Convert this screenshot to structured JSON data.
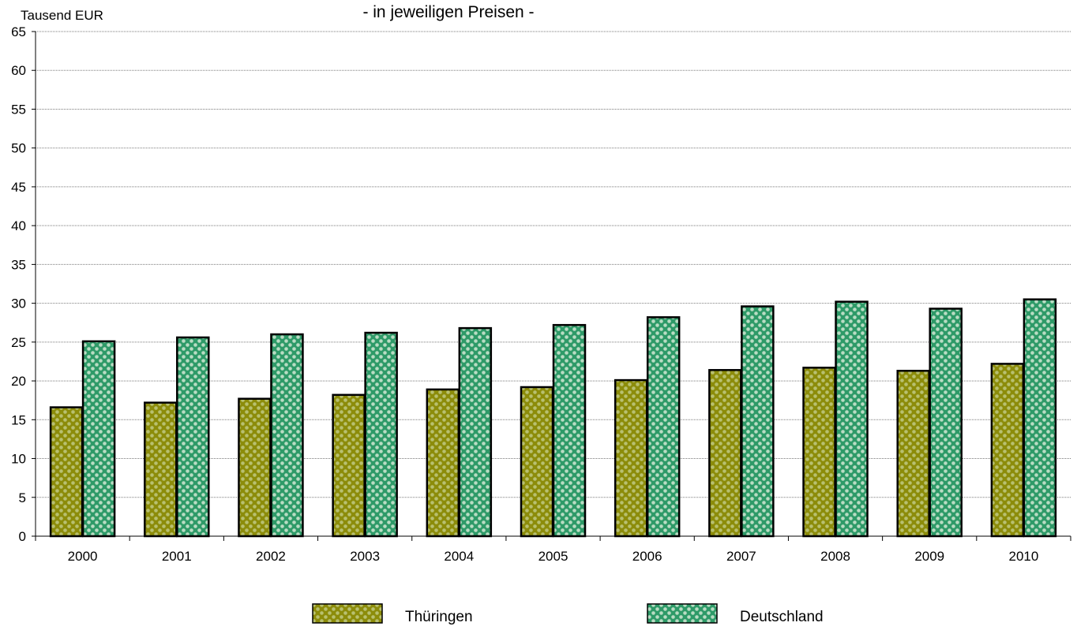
{
  "chart_data": {
    "type": "bar",
    "subtitle": "- in jeweiligen Preisen  -",
    "ylabel": "Tausend EUR",
    "ylim": [
      0,
      65
    ],
    "yticks": [
      0,
      5,
      10,
      15,
      20,
      25,
      30,
      35,
      40,
      45,
      50,
      55,
      60,
      65
    ],
    "categories": [
      "2000",
      "2001",
      "2002",
      "2003",
      "2004",
      "2005",
      "2006",
      "2007",
      "2008",
      "2009",
      "2010"
    ],
    "grid": true,
    "legend_position": "bottom",
    "series": [
      {
        "name": "Thüringen",
        "color": "#8c8c0a",
        "pattern_color": "#b8c070",
        "values": [
          16.6,
          17.2,
          17.7,
          18.2,
          18.9,
          19.2,
          20.1,
          21.4,
          21.7,
          21.3,
          22.2
        ]
      },
      {
        "name": "Deutschland",
        "color": "#2e9a68",
        "pattern_color": "#b9dcc3",
        "values": [
          25.1,
          25.6,
          26.0,
          26.2,
          26.8,
          27.2,
          28.2,
          29.6,
          30.2,
          29.3,
          30.5
        ]
      }
    ]
  }
}
